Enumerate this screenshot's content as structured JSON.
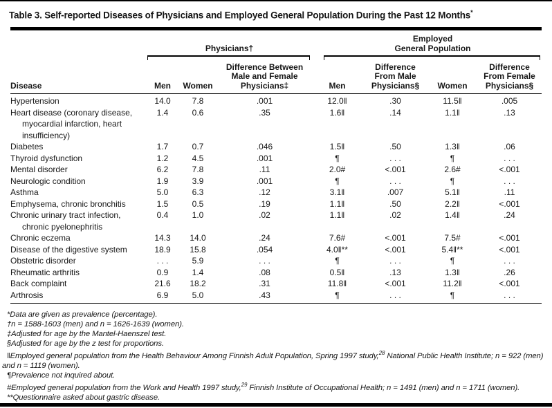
{
  "colors": {
    "text": "#161616",
    "rule": "#000000",
    "background": "#ffffff"
  },
  "title": {
    "pre": "Table 3. Self-reported Diseases of Physicians and Employed General Population During the Past 12 Months",
    "sup": "*"
  },
  "table": {
    "groups": {
      "physicians": "Physicians†",
      "employed": "Employed\nGeneral Population"
    },
    "columns": [
      "Disease",
      "Men",
      "Women",
      "Difference Between\nMale and Female\nPhysicians‡",
      "Men",
      "Difference\nFrom Male\nPhysicians§",
      "Women",
      "Difference\nFrom Female\nPhysicians§"
    ],
    "rows": [
      {
        "disease": "Hypertension",
        "cells": [
          "14.0",
          "7.8",
          ".001",
          "12.0‖",
          ".30",
          "11.5‖",
          ".005"
        ]
      },
      {
        "disease": "Heart disease (coronary disease,\nmyocardial infarction, heart\ninsufficiency)",
        "cells": [
          "1.4",
          "0.6",
          ".35",
          "1.6‖",
          ".14",
          "1.1‖",
          ".13"
        ]
      },
      {
        "disease": "Diabetes",
        "cells": [
          "1.7",
          "0.7",
          ".046",
          "1.5‖",
          ".50",
          "1.3‖",
          ".06"
        ]
      },
      {
        "disease": "Thyroid dysfunction",
        "cells": [
          "1.2",
          "4.5",
          ".001",
          "¶",
          ". . .",
          "¶",
          ". . ."
        ]
      },
      {
        "disease": "Mental disorder",
        "cells": [
          "6.2",
          "7.8",
          ".11",
          "2.0#",
          "<.001",
          "2.6#",
          "<.001"
        ]
      },
      {
        "disease": "Neurologic condition",
        "cells": [
          "1.9",
          "3.9",
          ".001",
          "¶",
          ". . .",
          "¶",
          ". . ."
        ]
      },
      {
        "disease": "Asthma",
        "cells": [
          "5.0",
          "6.3",
          ".12",
          "3.1‖",
          ".007",
          "5.1‖",
          ".11"
        ]
      },
      {
        "disease": "Emphysema, chronic bronchitis",
        "cells": [
          "1.5",
          "0.5",
          ".19",
          "1.1‖",
          ".50",
          "2.2‖",
          "<.001"
        ]
      },
      {
        "disease": "Chronic urinary tract infection,\nchronic pyelonephritis",
        "cells": [
          "0.4",
          "1.0",
          ".02",
          "1.1‖",
          ".02",
          "1.4‖",
          ".24"
        ]
      },
      {
        "disease": "Chronic eczema",
        "cells": [
          "14.3",
          "14.0",
          ".24",
          "7.6#",
          "<.001",
          "7.5#",
          "<.001"
        ]
      },
      {
        "disease": "Disease of the digestive system",
        "cells": [
          "18.9",
          "15.8",
          ".054",
          "4.0‖**",
          "<.001",
          "5.4‖**",
          "<.001"
        ]
      },
      {
        "disease": "Obstetric disorder",
        "cells": [
          ". . .",
          "5.9",
          ". . .",
          "¶",
          ". . .",
          "¶",
          ". . ."
        ]
      },
      {
        "disease": "Rheumatic arthritis",
        "cells": [
          "0.9",
          "1.4",
          ".08",
          "0.5‖",
          ".13",
          "1.3‖",
          ".26"
        ]
      },
      {
        "disease": "Back complaint",
        "cells": [
          "21.6",
          "18.2",
          ".31",
          "11.8‖",
          "<.001",
          "11.2‖",
          "<.001"
        ]
      },
      {
        "disease": "Arthrosis",
        "cells": [
          "6.9",
          "5.0",
          ".43",
          "¶",
          ". . .",
          "¶",
          ". . ."
        ]
      }
    ]
  },
  "footnotes": [
    {
      "pre": "*Data are given as prevalence (percentage)."
    },
    {
      "pre": "†n = 1588-1603 (men) and n = 1626-1639 (women)."
    },
    {
      "pre": "‡Adjusted for age by the Mantel-Haenszel test."
    },
    {
      "pre": "§Adjusted for age by the z test for proportions."
    },
    {
      "pre": "‖Employed general population from the Health Behaviour Among Finnish Adult Population, Spring 1997 study,",
      "sup": "28",
      "post": " National Public Health Institute; n = 922 (men) and n = 1119 (women)."
    },
    {
      "pre": "¶Prevalence not inquired about."
    },
    {
      "pre": "#Employed general population from the Work and Health 1997 study,",
      "sup": "29",
      "post": " Finnish Institute of Occupational Health; n = 1491 (men) and n = 1711 (women)."
    },
    {
      "pre": "**Questionnaire asked about gastric disease."
    }
  ]
}
